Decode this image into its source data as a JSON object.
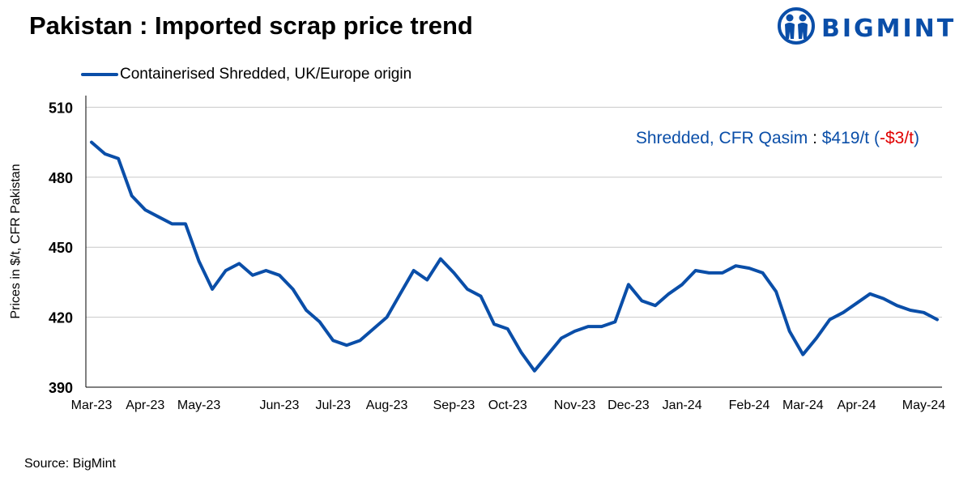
{
  "title": "Pakistan : Imported scrap price trend",
  "logo": {
    "text": "BIGMINT",
    "icon": "bigmint-people-icon",
    "color": "#0a4ea8"
  },
  "source": "Source: BigMint",
  "colors": {
    "series": "#0a4ea8",
    "annotation_text": "#0a4ea8",
    "annotation_change": "#e00000",
    "grid": "#c8c8c8",
    "axis": "#000000"
  },
  "annotation": {
    "label": "Shredded, CFR Qasim",
    "separator": " : ",
    "value": "$419/t",
    "open": " (",
    "change": "-$3/t",
    "close": ")"
  },
  "chart_data": {
    "type": "line",
    "title": "Pakistan : Imported scrap price trend",
    "xlabel": "",
    "ylabel": "Prices in $/t, CFR Pakistan",
    "ylim": [
      390,
      515
    ],
    "yticks": [
      390,
      420,
      450,
      480,
      510
    ],
    "grid": "horizontal",
    "legend_position": "top-left",
    "x_tick_labels": [
      {
        "label": "Mar-23",
        "index": 0
      },
      {
        "label": "Apr-23",
        "index": 4
      },
      {
        "label": "May-23",
        "index": 8
      },
      {
        "label": "Jun-23",
        "index": 14
      },
      {
        "label": "Jul-23",
        "index": 18
      },
      {
        "label": "Aug-23",
        "index": 22
      },
      {
        "label": "Sep-23",
        "index": 27
      },
      {
        "label": "Oct-23",
        "index": 31
      },
      {
        "label": "Nov-23",
        "index": 36
      },
      {
        "label": "Dec-23",
        "index": 40
      },
      {
        "label": "Jan-24",
        "index": 44
      },
      {
        "label": "Feb-24",
        "index": 49
      },
      {
        "label": "Mar-24",
        "index": 53
      },
      {
        "label": "Apr-24",
        "index": 57
      },
      {
        "label": "May-24",
        "index": 62
      }
    ],
    "series": [
      {
        "name": "Containerised Shredded, UK/Europe origin",
        "values": [
          495,
          490,
          488,
          472,
          466,
          463,
          460,
          460,
          444,
          432,
          440,
          443,
          438,
          440,
          438,
          432,
          423,
          418,
          410,
          408,
          410,
          415,
          420,
          430,
          440,
          436,
          445,
          439,
          432,
          429,
          417,
          415,
          405,
          397,
          404,
          411,
          414,
          416,
          416,
          418,
          434,
          427,
          425,
          430,
          434,
          440,
          439,
          439,
          442,
          441,
          439,
          431,
          414,
          404,
          411,
          419,
          422,
          426,
          430,
          428,
          425,
          423,
          422,
          419
        ]
      }
    ]
  }
}
